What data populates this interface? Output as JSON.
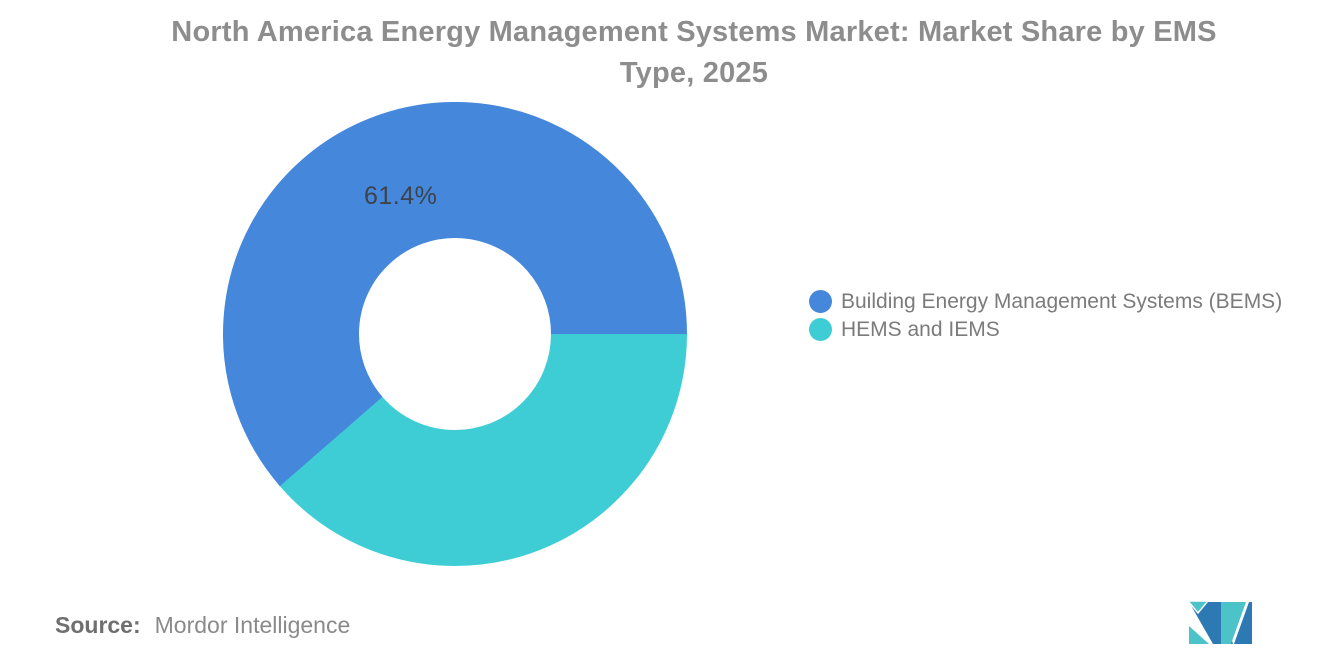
{
  "title": "North America Energy Management Systems Market: Market Share by EMS Type, 2025",
  "chart_data": {
    "type": "pie",
    "subtype": "donut",
    "title": "North America Energy Management Systems Market: Market Share by EMS Type, 2025",
    "categories": [
      "Building Energy Management Systems (BEMS)",
      "HEMS and IEMS"
    ],
    "values": [
      61.4,
      38.6
    ],
    "unit": "%",
    "colors": [
      "#4587DB",
      "#3ECDD4"
    ],
    "percent_label": "61.4%",
    "inner_radius_ratio": 0.41,
    "start_angle_clockwise_from_top_deg": 90,
    "legend_position": "right",
    "background": "#ffffff"
  },
  "legend": {
    "items": [
      {
        "label": "Building Energy Management Systems (BEMS)",
        "color": "#4587DB"
      },
      {
        "label": "HEMS and IEMS",
        "color": "#3ECDD4"
      }
    ]
  },
  "source": {
    "label": "Source:",
    "value": "Mordor Intelligence"
  },
  "logo": {
    "name": "Mordor Intelligence",
    "teal": "#4CC3C9",
    "blue": "#2C79B4"
  }
}
